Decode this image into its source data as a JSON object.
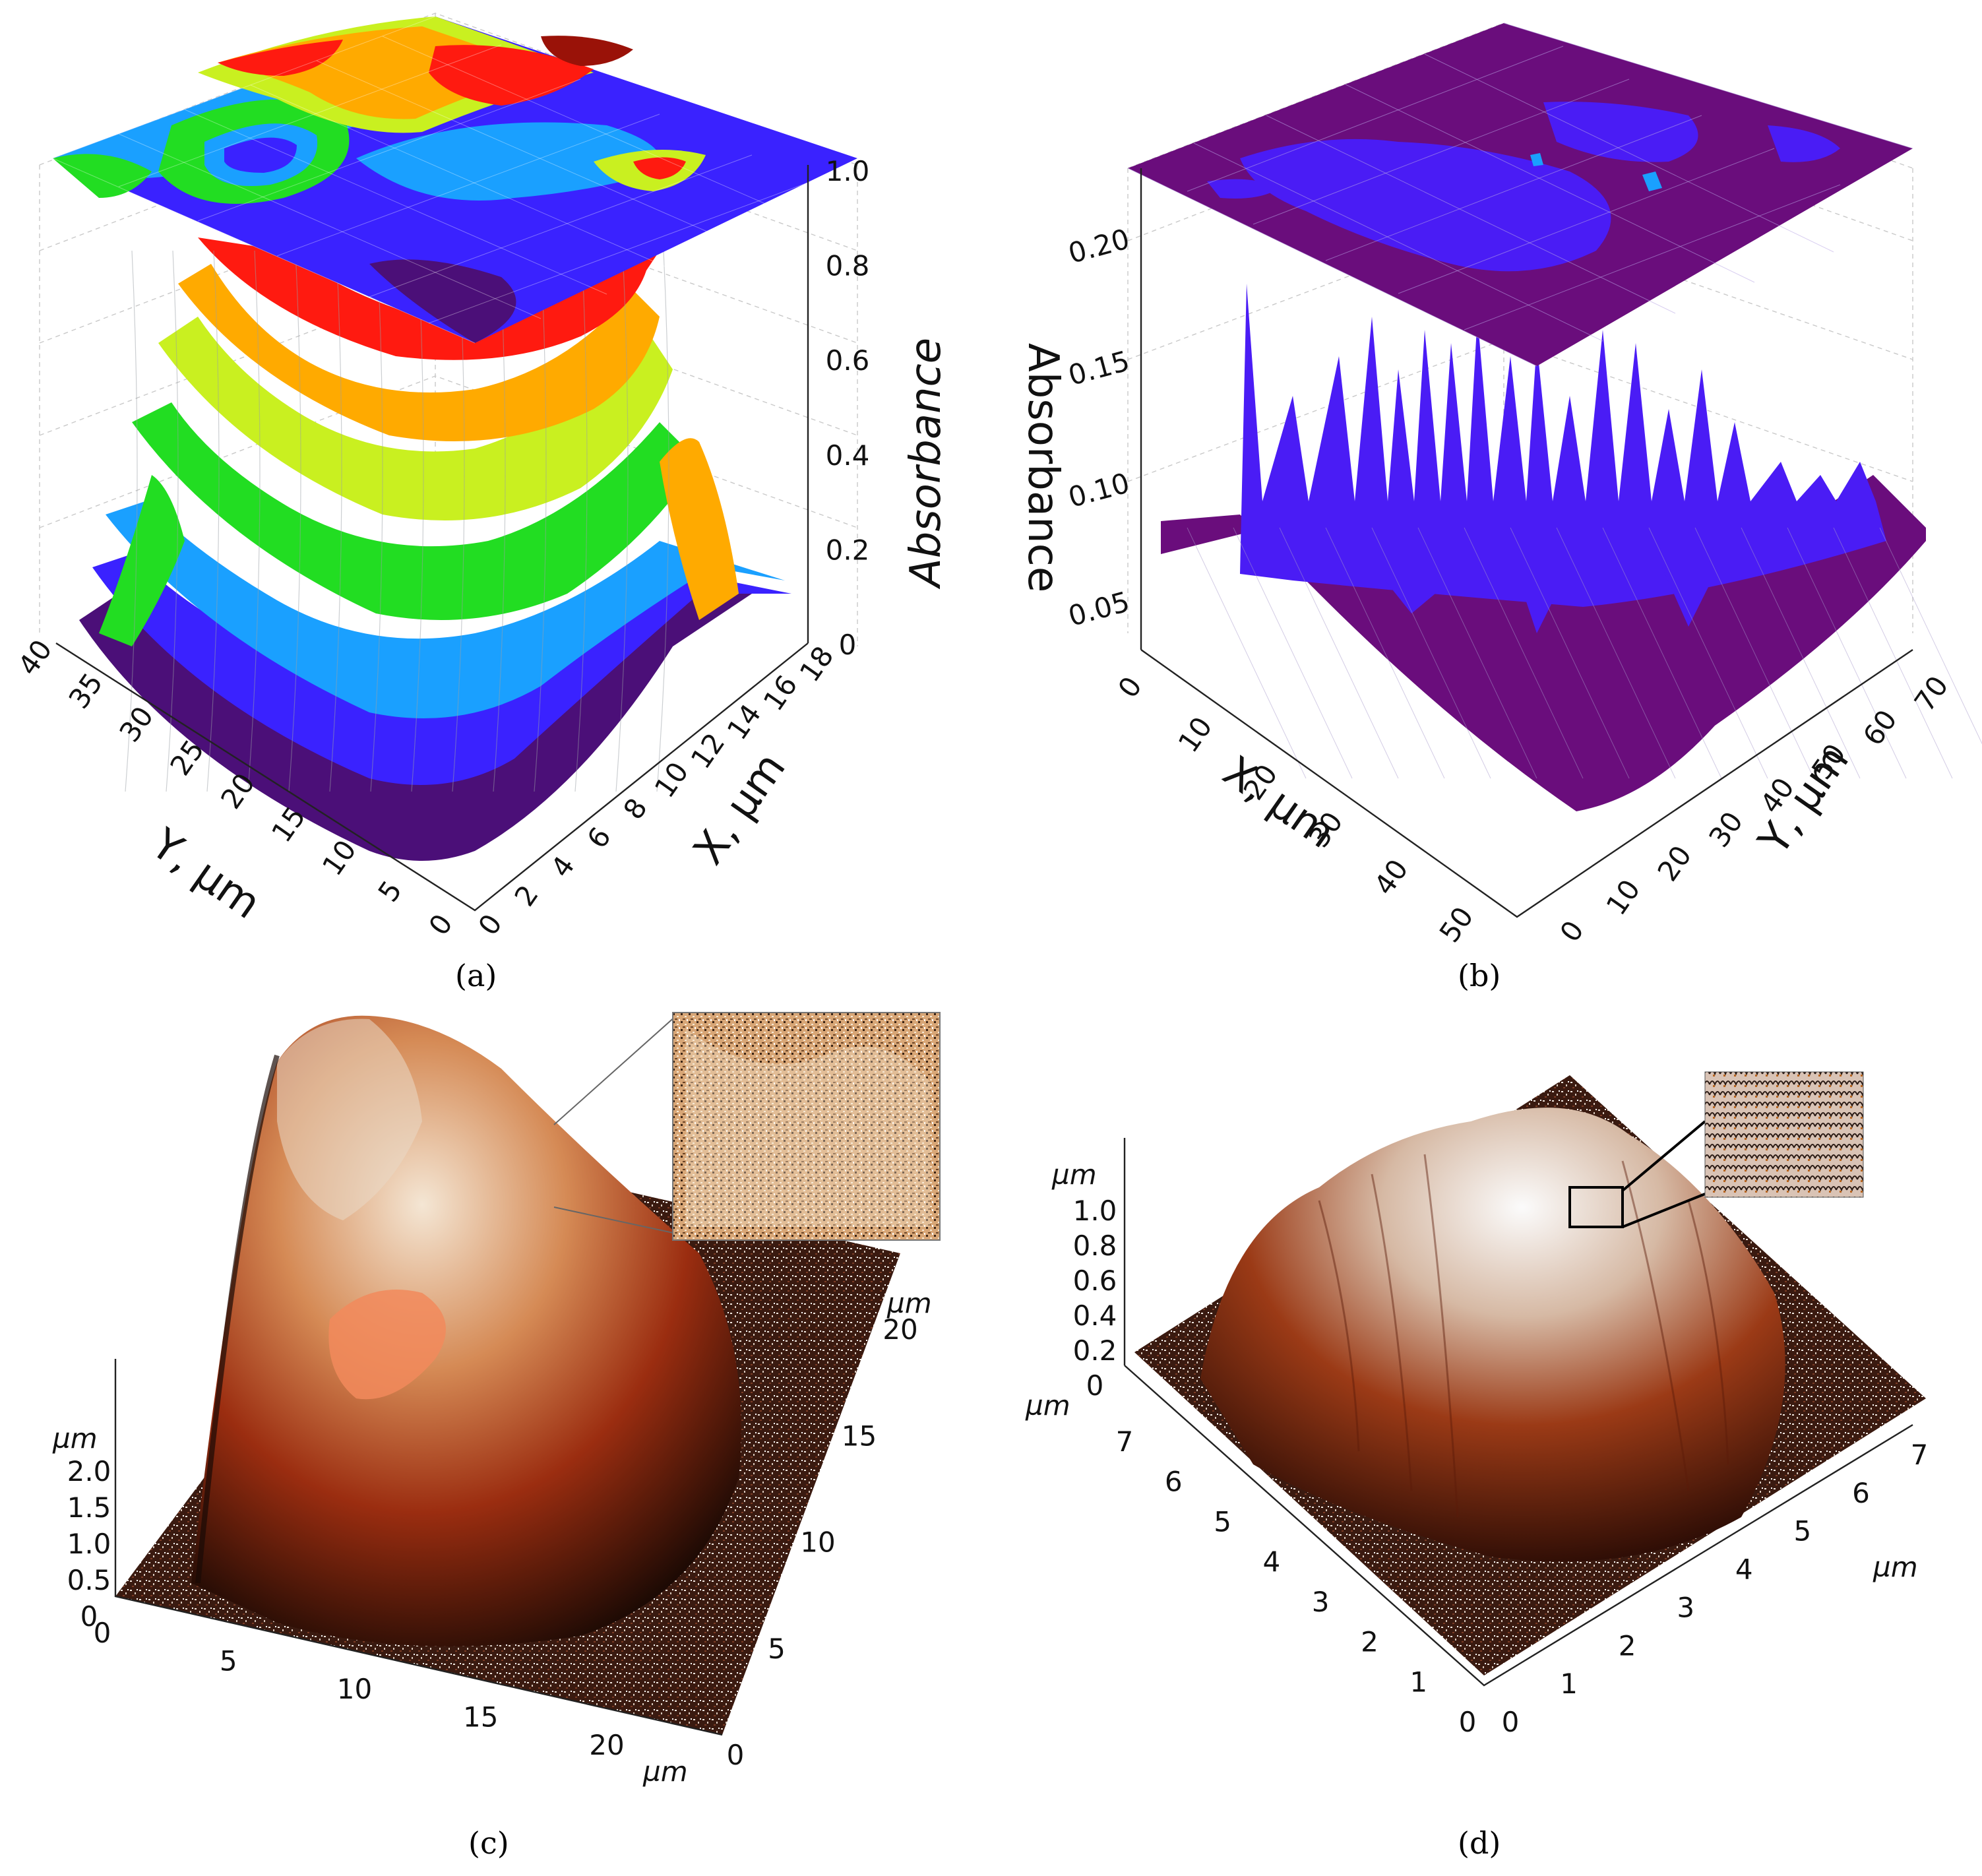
{
  "panel_labels": [
    "(a)",
    "(b)",
    "(c)",
    "(d)"
  ],
  "chart_data": [
    {
      "id": "a",
      "type": "surface3d",
      "zlabel": "Absorbance",
      "xlabel": "X, µm",
      "ylabel": "Y, µm",
      "x_ticks": [
        "0",
        "2",
        "4",
        "6",
        "8",
        "10",
        "12",
        "14",
        "16",
        "18"
      ],
      "y_ticks": [
        "0",
        "5",
        "10",
        "15",
        "20",
        "25",
        "30",
        "35",
        "40"
      ],
      "z_ticks": [
        "0",
        "0.2",
        "0.4",
        "0.6",
        "0.8",
        "1.0"
      ],
      "xlim": [
        0,
        18
      ],
      "ylim": [
        0,
        40
      ],
      "zlim": [
        0,
        1.0
      ],
      "colors": [
        "#4b0f78",
        "#3a22ff",
        "#1aa0ff",
        "#22dd22",
        "#c9f020",
        "#ffaa00",
        "#ff1a10"
      ],
      "contour_projection": "top"
    },
    {
      "id": "b",
      "type": "surface3d",
      "zlabel": "Absorbance",
      "xlabel": "X, µm",
      "ylabel": "Y, µm",
      "x_ticks": [
        "0",
        "10",
        "20",
        "30",
        "40",
        "50"
      ],
      "y_ticks": [
        "0",
        "10",
        "20",
        "30",
        "40",
        "50",
        "60",
        "70"
      ],
      "z_ticks": [
        "0.05",
        "0.10",
        "0.15",
        "0.20"
      ],
      "xlim": [
        0,
        55
      ],
      "ylim": [
        0,
        72
      ],
      "zlim": [
        0.03,
        0.23
      ],
      "colors": [
        "#6a0d7c",
        "#4a1cf5",
        "#1aa0ff"
      ],
      "contour_projection": "top"
    },
    {
      "id": "c",
      "type": "afm3d",
      "unit": "µm",
      "x_ticks": [
        "0",
        "5",
        "10",
        "15",
        "20"
      ],
      "y_ticks": [
        "0",
        "5",
        "10",
        "15",
        "20"
      ],
      "z_ticks": [
        "0",
        "0.5",
        "1.0",
        "1.5",
        "2.0"
      ],
      "colors": [
        "#1a0a05",
        "#9a2a0e",
        "#e0682c",
        "#f6ddc0"
      ],
      "inset": true
    },
    {
      "id": "d",
      "type": "afm3d",
      "unit": "µm",
      "x_ticks": [
        "0",
        "1",
        "2",
        "3",
        "4",
        "5",
        "6",
        "7"
      ],
      "y_ticks": [
        "0",
        "1",
        "2",
        "3",
        "4",
        "5",
        "6",
        "7"
      ],
      "z_ticks": [
        "0",
        "0.2",
        "0.4",
        "0.6",
        "0.8",
        "1.0"
      ],
      "colors": [
        "#2a0d06",
        "#8e2e12",
        "#c9815a",
        "#f2f2f2"
      ],
      "inset": true
    }
  ]
}
